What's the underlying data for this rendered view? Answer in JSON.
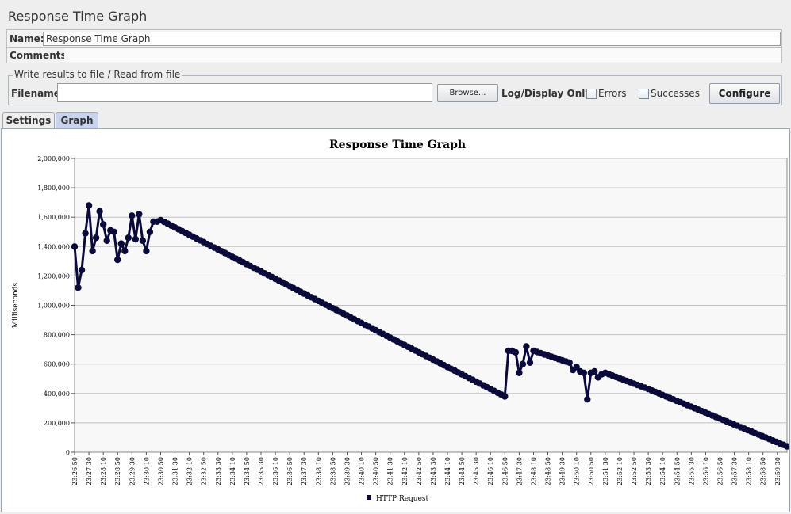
{
  "header": {
    "title": "Response Time Graph"
  },
  "form": {
    "name_label": "Name:",
    "name_value": "Response Time Graph",
    "comments_label": "Comments:"
  },
  "file": {
    "legend": "Write results to file / Read from file",
    "filename_label": "Filename",
    "filename_value": "",
    "browse_label": "Browse...",
    "log_label": "Log/Display Only:",
    "errors_label": "Errors",
    "successes_label": "Successes",
    "configure_label": "Configure",
    "errors_checked": false,
    "successes_checked": false
  },
  "tabs": [
    {
      "label": "Settings",
      "active": false
    },
    {
      "label": "Graph",
      "active": true
    }
  ],
  "colors": {
    "series": "#0a0a3a",
    "plot_bg": "#f8f8f8",
    "grid": "#c0c0c0",
    "active_tab": "#c8d4ee"
  },
  "chart_data": {
    "type": "line",
    "title": "Response Time Graph",
    "ylabel": "Milliseconds",
    "xlabel": "",
    "ylim": [
      0,
      2000000
    ],
    "yticks": [
      0,
      200000,
      400000,
      600000,
      800000,
      1000000,
      1200000,
      1400000,
      1600000,
      1800000,
      2000000
    ],
    "ytick_labels": [
      "0",
      "200,000",
      "400,000",
      "600,000",
      "800,000",
      "1,000,000",
      "1,200,000",
      "1,400,000",
      "1,600,000",
      "1,800,000",
      "2,000,000"
    ],
    "xlim": [
      "23:26:50",
      "23:59:57"
    ],
    "xtick_labels": [
      "23:26:50",
      "23:27:30",
      "23:28:10",
      "23:28:50",
      "23:29:30",
      "23:30:10",
      "23:30:50",
      "23:31:30",
      "23:32:10",
      "23:32:50",
      "23:33:30",
      "23:34:10",
      "23:34:50",
      "23:35:30",
      "23:36:10",
      "23:36:50",
      "23:37:30",
      "23:38:10",
      "23:38:50",
      "23:39:30",
      "23:40:10",
      "23:40:50",
      "23:41:30",
      "23:42:10",
      "23:42:50",
      "23:43:30",
      "23:44:10",
      "23:44:50",
      "23:45:30",
      "23:46:10",
      "23:46:50",
      "23:47:30",
      "23:48:10",
      "23:48:50",
      "23:49:30",
      "23:50:10",
      "23:50:50",
      "23:51:30",
      "23:52:10",
      "23:52:50",
      "23:53:30",
      "23:54:10",
      "23:54:50",
      "23:55:30",
      "23:56:10",
      "23:56:50",
      "23:57:30",
      "23:58:10",
      "23:58:50",
      "23:59:30"
    ],
    "grid": true,
    "legend_position": "bottom",
    "series": [
      {
        "name": "HTTP Request",
        "points": [
          [
            "23:26:50",
            1400000
          ],
          [
            "23:27:00",
            1120000
          ],
          [
            "23:27:10",
            1240000
          ],
          [
            "23:27:20",
            1490000
          ],
          [
            "23:27:30",
            1680000
          ],
          [
            "23:27:40",
            1370000
          ],
          [
            "23:27:50",
            1460000
          ],
          [
            "23:28:00",
            1640000
          ],
          [
            "23:28:10",
            1550000
          ],
          [
            "23:28:20",
            1440000
          ],
          [
            "23:28:30",
            1510000
          ],
          [
            "23:28:40",
            1500000
          ],
          [
            "23:28:50",
            1310000
          ],
          [
            "23:29:00",
            1420000
          ],
          [
            "23:29:10",
            1370000
          ],
          [
            "23:29:20",
            1460000
          ],
          [
            "23:29:30",
            1610000
          ],
          [
            "23:29:40",
            1450000
          ],
          [
            "23:29:50",
            1620000
          ],
          [
            "23:30:00",
            1440000
          ],
          [
            "23:30:10",
            1370000
          ],
          [
            "23:30:20",
            1500000
          ],
          [
            "23:30:30",
            1570000
          ],
          [
            "23:30:40",
            1570000
          ],
          [
            "23:30:50",
            1580000
          ],
          [
            "23:46:50",
            380000
          ],
          [
            "23:47:00",
            690000
          ],
          [
            "23:47:10",
            690000
          ],
          [
            "23:47:20",
            680000
          ],
          [
            "23:47:30",
            540000
          ],
          [
            "23:47:40",
            600000
          ],
          [
            "23:47:50",
            720000
          ],
          [
            "23:48:00",
            610000
          ],
          [
            "23:48:10",
            690000
          ],
          [
            "23:49:50",
            610000
          ],
          [
            "23:50:00",
            560000
          ],
          [
            "23:50:10",
            580000
          ],
          [
            "23:50:20",
            550000
          ],
          [
            "23:50:30",
            540000
          ],
          [
            "23:50:40",
            360000
          ],
          [
            "23:50:50",
            540000
          ],
          [
            "23:51:00",
            550000
          ],
          [
            "23:51:10",
            510000
          ],
          [
            "23:51:20",
            530000
          ],
          [
            "23:51:30",
            540000
          ],
          [
            "23:53:30",
            430000
          ],
          [
            "23:59:57",
            40000
          ]
        ]
      }
    ]
  }
}
